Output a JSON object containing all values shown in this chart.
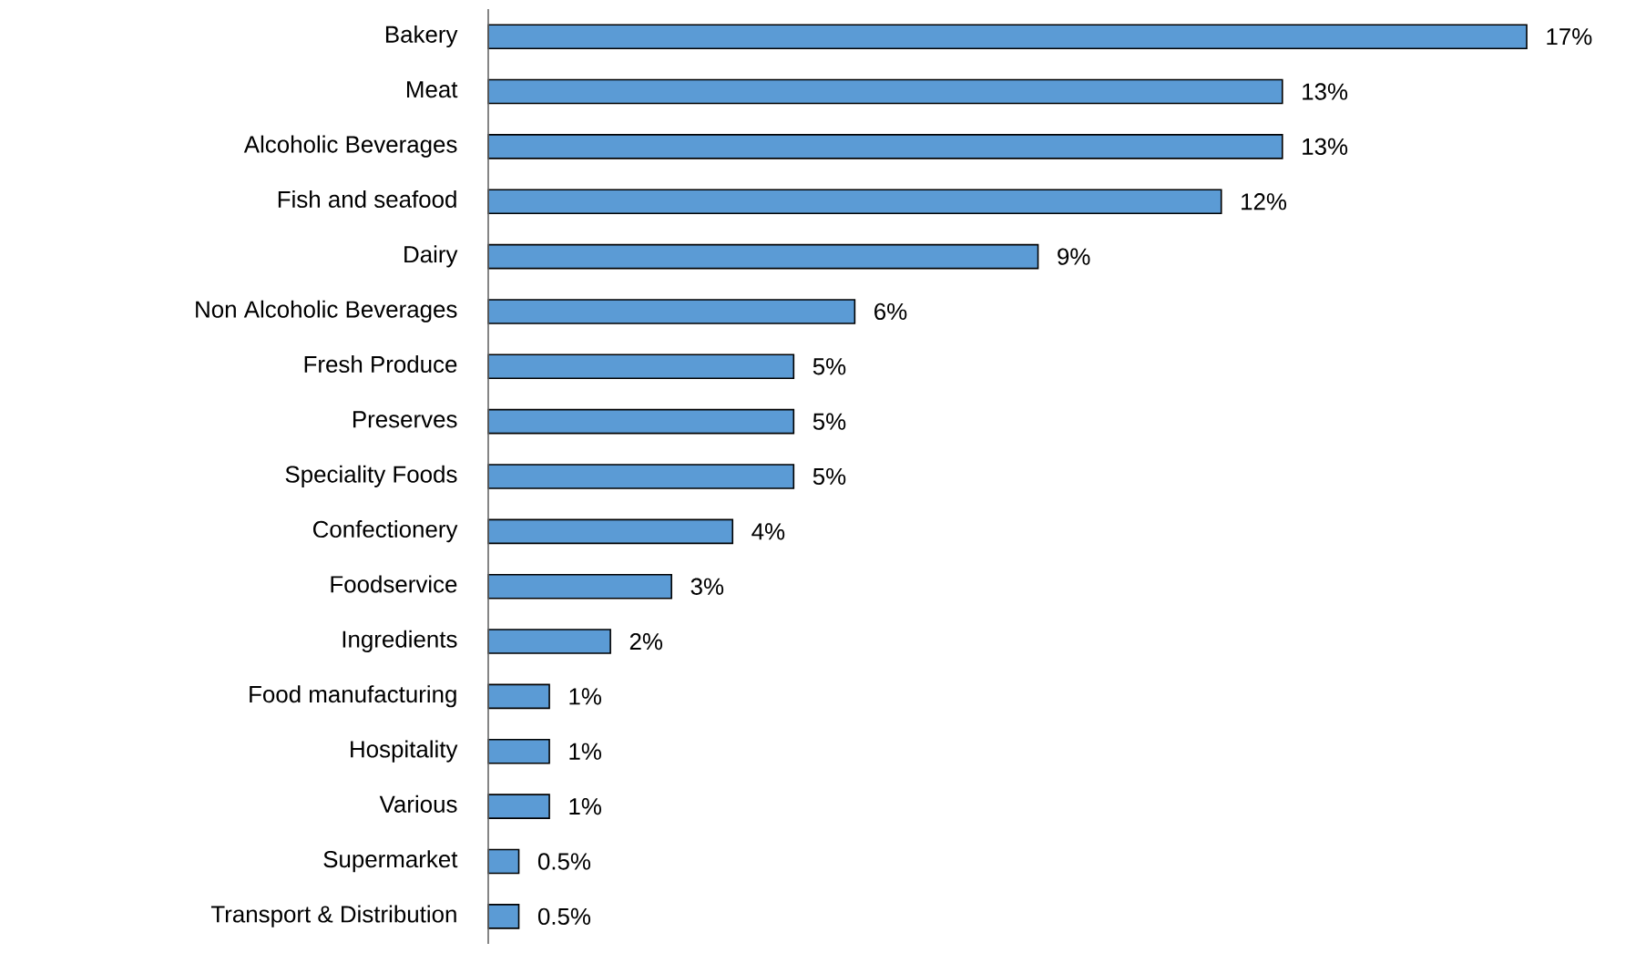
{
  "chart_data": {
    "type": "bar",
    "orientation": "horizontal",
    "color": "#5b9bd5",
    "categories": [
      "Bakery",
      "Meat",
      "Alcoholic Beverages",
      "Fish and seafood",
      "Dairy",
      "Non Alcoholic Beverages",
      "Fresh Produce",
      "Preserves",
      "Speciality Foods",
      "Confectionery",
      "Foodservice",
      "Ingredients",
      "Food manufacturing",
      "Hospitality",
      "Various",
      "Supermarket",
      "Transport & Distribution"
    ],
    "values": [
      17,
      13,
      13,
      12,
      9,
      6,
      5,
      5,
      5,
      4,
      3,
      2,
      1,
      1,
      1,
      0.5,
      0.5
    ],
    "value_labels": [
      "17%",
      "13%",
      "13%",
      "12%",
      "9%",
      "6%",
      "5%",
      "5%",
      "5%",
      "4%",
      "3%",
      "2%",
      "1%",
      "1%",
      "1%",
      "0.5%",
      "0.5%"
    ]
  }
}
